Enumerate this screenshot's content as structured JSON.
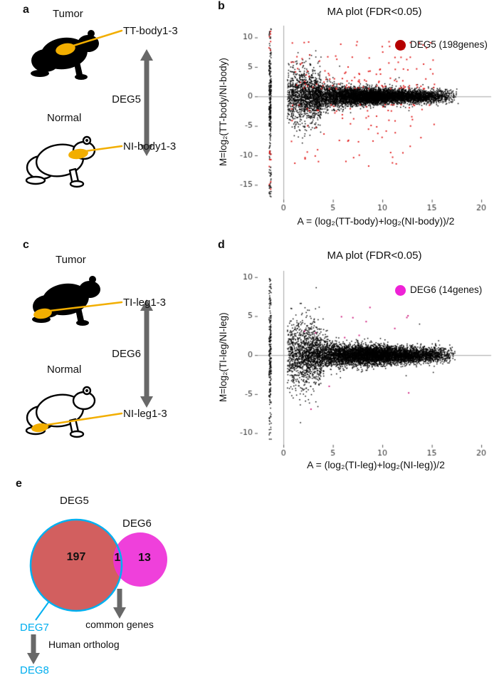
{
  "panels": {
    "a": {
      "label": "a",
      "tumor_heading": "Tumor",
      "tumor_sample_label": "TT-body1-3",
      "deg_arrow_label": "DEG5",
      "normal_heading": "Normal",
      "normal_sample_label": "NI-body1-3"
    },
    "b": {
      "label": "b"
    },
    "c": {
      "label": "c",
      "tumor_heading": "Tumor",
      "tumor_sample_label": "TI-leg1-3",
      "deg_arrow_label": "DEG6",
      "normal_heading": "Normal",
      "normal_sample_label": "NI-leg1-3"
    },
    "d": {
      "label": "d"
    },
    "e": {
      "label": "e",
      "venn": {
        "left_set_label": "DEG5",
        "right_set_label": "DEG6",
        "left_only_count": "197",
        "overlap_count": "1",
        "right_only_count": "13",
        "outlined_set_label": "DEG7",
        "common_genes_label": "common genes",
        "ortholog_step_label": "Human ortholog",
        "result_set_label": "DEG8"
      }
    }
  },
  "theme_colors": {
    "venn-left-fill": "#d25f5f",
    "venn-right-fill": "#ee30d8",
    "venn-outline": "#00b0f0",
    "accent-cyan": "#00aeef",
    "tumor-spot": "#f2ae00",
    "arrow-gray": "#686868"
  },
  "chart_data": [
    {
      "id": "ma-plot-body",
      "type": "scatter",
      "title": "MA plot (FDR<0.05)",
      "xlabel": "A = (log₂(TT-body)+log₂(NI-body))/2",
      "ylabel": "M=log₂(TT-body/NI-body)",
      "xlim": [
        -2.6,
        21
      ],
      "ylim": [
        -17.5,
        12
      ],
      "xticks": [
        0,
        5,
        10,
        15,
        20
      ],
      "yticks": [
        10,
        5,
        0,
        -5,
        -10,
        -15
      ],
      "grid": false,
      "legend_position": "top-right",
      "legend_label": "DEG5 (198genes)",
      "legend_color": "#b50000",
      "description": "MA plot of tumor body (TT-body) vs normal body (NI-body); black dots = all genes, red dots = 198 significant DEGs (FDR<0.05); vertical stripe at A≈-1.3 = genes detected in one condition only",
      "points": {
        "seed": 1337,
        "point_color": "#000000",
        "cloud_n": 6500,
        "cloud_x": [
          0.4,
          17.8
        ],
        "cloud_sd_base": 0.55,
        "cloud_sd_low": 2.3,
        "wedge_n": 900,
        "wedge_x": [
          0.4,
          3.8
        ],
        "wedge_sd": 2.6,
        "stripe_x": -1.35,
        "stripe_n": 280,
        "stripe_y": [
          -17.2,
          11.5
        ],
        "sig_color": "#e01212",
        "sig_n": 198,
        "sig_up_frac": 0.62,
        "sig_x": [
          0.8,
          15.5
        ],
        "sig_up_y": [
          1.3,
          9.3
        ],
        "sig_dn_y": [
          -12.8,
          -1.4
        ],
        "stripe_sig": [
          {
            "n": 10,
            "y": [
              -17,
              -9
            ]
          },
          {
            "n": 6,
            "y": [
              7.5,
              11.2
            ]
          }
        ]
      }
    },
    {
      "id": "ma-plot-leg",
      "type": "scatter",
      "title": "MA plot (FDR<0.05)",
      "xlabel": "A = (log₂(TI-leg)+log₂(NI-leg))/2",
      "ylabel": "M=log₂(TI-leg/NI-leg)",
      "xlim": [
        -2.6,
        21
      ],
      "ylim": [
        -11.5,
        10.8
      ],
      "xticks": [
        0,
        5,
        10,
        15,
        20
      ],
      "yticks": [
        10,
        5,
        0,
        -5,
        -10
      ],
      "grid": false,
      "legend_position": "top-right",
      "legend_label": "DEG6 (14genes)",
      "legend_color": "#ee22d6",
      "description": "MA plot of tumor leg (TI-leg) vs normal leg (NI-leg); black dots = all genes, magenta dots = 14 significant DEGs (FDR<0.05)",
      "points": {
        "seed": 2024,
        "point_color": "#000000",
        "cloud_n": 6200,
        "cloud_x": [
          0.4,
          17.5
        ],
        "cloud_sd_base": 0.5,
        "cloud_sd_low": 2.0,
        "wedge_n": 850,
        "wedge_x": [
          0.4,
          3.8
        ],
        "wedge_sd": 2.3,
        "stripe_x": -1.35,
        "stripe_n": 240,
        "stripe_y": [
          -10.9,
          9.8
        ],
        "sig_color": "#cc1478",
        "sig_n": 14,
        "sig_up_frac": 0.78,
        "sig_x": [
          1.5,
          13.5
        ],
        "sig_up_y": [
          2.2,
          8.2
        ],
        "sig_dn_y": [
          -7.5,
          -2.2
        ],
        "stripe_sig": []
      }
    }
  ]
}
